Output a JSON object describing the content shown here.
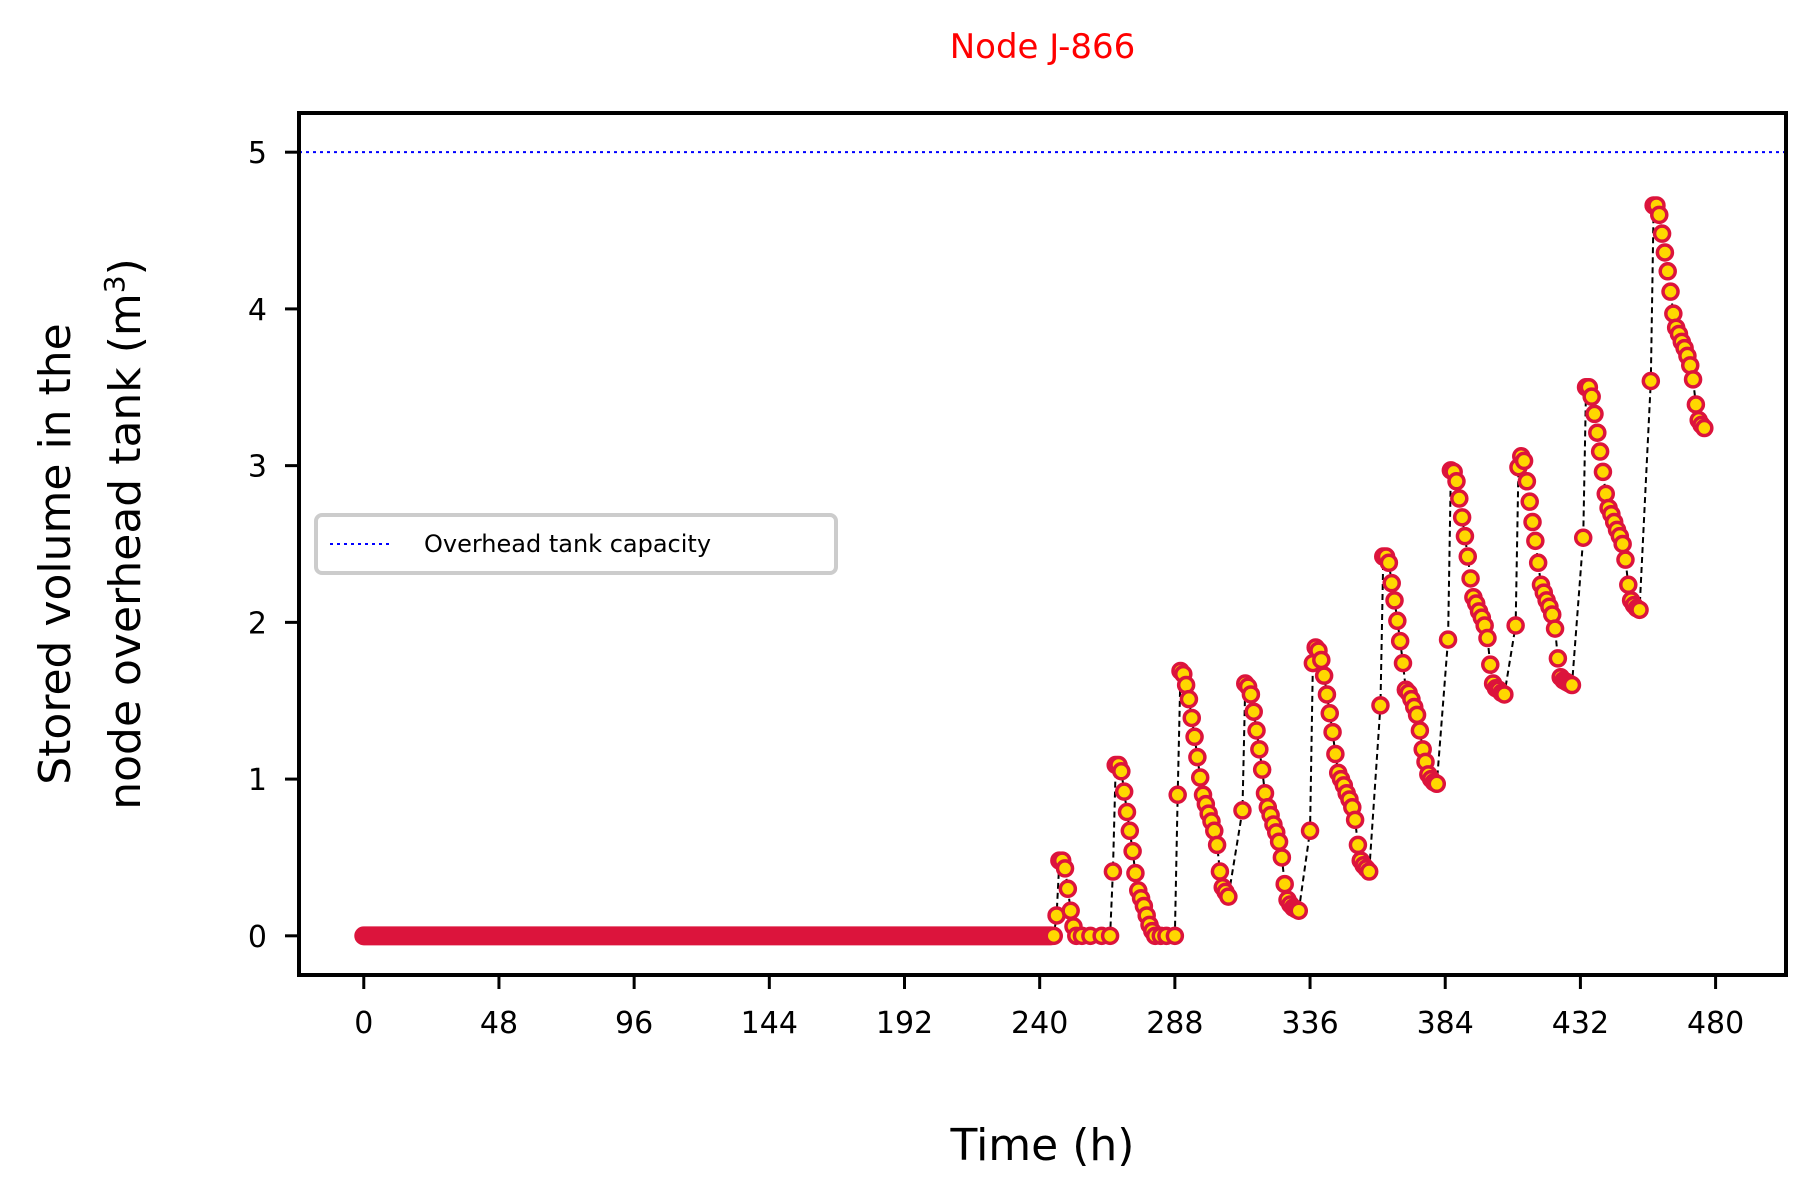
{
  "chart_data": {
    "type": "scatter",
    "title": "Node J-866",
    "xlabel": "Time (h)",
    "ylabel_line1": "Stored volume in the",
    "ylabel_line2_prefix": "node overhead tank (m",
    "ylabel_sup": "3",
    "ylabel_suffix": ")",
    "xlim": [
      -23,
      505
    ],
    "ylim": [
      -0.25,
      5.25
    ],
    "xticks": [
      0,
      48,
      96,
      144,
      192,
      240,
      288,
      336,
      384,
      432,
      480
    ],
    "yticks": [
      0,
      1,
      2,
      3,
      4,
      5
    ],
    "capacity": 5,
    "legend": {
      "label": "Overhead tank capacity",
      "location": "center-left"
    },
    "grid": false,
    "colors": {
      "title": "#ff0000",
      "marker_edge": "#dc143c",
      "marker_face": "#ffd700",
      "connector": "#000000",
      "capacity_line": "#0000ff"
    },
    "zero_segment": {
      "x_start": 0,
      "x_end": 244,
      "y": 0
    },
    "series": [
      {
        "values": [
          [
            245,
            0
          ],
          [
            246,
            0.13
          ],
          [
            247,
            0.48
          ],
          [
            248,
            0.48
          ],
          [
            249,
            0.43
          ],
          [
            250,
            0.3
          ],
          [
            251,
            0.16
          ],
          [
            252,
            0.06
          ],
          [
            253,
            0
          ],
          [
            255,
            0
          ],
          [
            258,
            0
          ],
          [
            262,
            0
          ],
          [
            265,
            0
          ],
          [
            266,
            0.41
          ],
          [
            267,
            1.09
          ],
          [
            268,
            1.09
          ],
          [
            269,
            1.05
          ],
          [
            270,
            0.92
          ],
          [
            271,
            0.79
          ],
          [
            272,
            0.67
          ],
          [
            273,
            0.54
          ],
          [
            274,
            0.4
          ],
          [
            275,
            0.29
          ],
          [
            276,
            0.24
          ],
          [
            277,
            0.19
          ],
          [
            278,
            0.13
          ],
          [
            279,
            0.07
          ],
          [
            280,
            0.03
          ],
          [
            281,
            0
          ],
          [
            283,
            0
          ],
          [
            285,
            0
          ],
          [
            288,
            0
          ],
          [
            289,
            0.9
          ],
          [
            290,
            1.69
          ],
          [
            291,
            1.67
          ],
          [
            292,
            1.6
          ],
          [
            293,
            1.51
          ],
          [
            294,
            1.39
          ],
          [
            295,
            1.27
          ],
          [
            296,
            1.14
          ],
          [
            297,
            1.01
          ],
          [
            298,
            0.9
          ],
          [
            299,
            0.84
          ],
          [
            300,
            0.78
          ],
          [
            301,
            0.73
          ],
          [
            302,
            0.67
          ],
          [
            303,
            0.58
          ],
          [
            304,
            0.41
          ],
          [
            305,
            0.31
          ],
          [
            306,
            0.28
          ],
          [
            307,
            0.25
          ],
          [
            312,
            0.8
          ],
          [
            313,
            1.61
          ],
          [
            314,
            1.59
          ],
          [
            315,
            1.54
          ],
          [
            316,
            1.43
          ],
          [
            317,
            1.31
          ],
          [
            318,
            1.19
          ],
          [
            319,
            1.06
          ],
          [
            320,
            0.91
          ],
          [
            321,
            0.82
          ],
          [
            322,
            0.77
          ],
          [
            323,
            0.71
          ],
          [
            324,
            0.66
          ],
          [
            325,
            0.6
          ],
          [
            326,
            0.5
          ],
          [
            327,
            0.33
          ],
          [
            328,
            0.23
          ],
          [
            329,
            0.2
          ],
          [
            330,
            0.18
          ],
          [
            331,
            0.17
          ],
          [
            332,
            0.16
          ],
          [
            336,
            0.67
          ],
          [
            337,
            1.74
          ],
          [
            338,
            1.84
          ],
          [
            339,
            1.82
          ],
          [
            340,
            1.76
          ],
          [
            341,
            1.66
          ],
          [
            342,
            1.54
          ],
          [
            343,
            1.42
          ],
          [
            344,
            1.3
          ],
          [
            345,
            1.16
          ],
          [
            346,
            1.04
          ],
          [
            347,
            1.0
          ],
          [
            348,
            0.96
          ],
          [
            349,
            0.91
          ],
          [
            350,
            0.87
          ],
          [
            351,
            0.82
          ],
          [
            352,
            0.74
          ],
          [
            353,
            0.58
          ],
          [
            354,
            0.48
          ],
          [
            355,
            0.45
          ],
          [
            356,
            0.43
          ],
          [
            357,
            0.41
          ],
          [
            361,
            1.47
          ],
          [
            362,
            2.42
          ],
          [
            363,
            2.42
          ],
          [
            364,
            2.38
          ],
          [
            365,
            2.25
          ],
          [
            366,
            2.14
          ],
          [
            367,
            2.01
          ],
          [
            368,
            1.88
          ],
          [
            369,
            1.74
          ],
          [
            370,
            1.57
          ],
          [
            371,
            1.55
          ],
          [
            372,
            1.51
          ],
          [
            373,
            1.46
          ],
          [
            374,
            1.41
          ],
          [
            375,
            1.31
          ],
          [
            376,
            1.19
          ],
          [
            377,
            1.11
          ],
          [
            378,
            1.03
          ],
          [
            379,
            1.0
          ],
          [
            380,
            0.98
          ],
          [
            381,
            0.97
          ],
          [
            385,
            1.89
          ],
          [
            386,
            2.97
          ],
          [
            387,
            2.96
          ],
          [
            388,
            2.9
          ],
          [
            389,
            2.79
          ],
          [
            390,
            2.67
          ],
          [
            391,
            2.55
          ],
          [
            392,
            2.42
          ],
          [
            393,
            2.28
          ],
          [
            394,
            2.16
          ],
          [
            395,
            2.12
          ],
          [
            396,
            2.07
          ],
          [
            397,
            2.03
          ],
          [
            398,
            1.98
          ],
          [
            399,
            1.9
          ],
          [
            400,
            1.73
          ],
          [
            401,
            1.61
          ],
          [
            402,
            1.58
          ],
          [
            403,
            1.57
          ],
          [
            404,
            1.55
          ],
          [
            405,
            1.54
          ],
          [
            409,
            1.98
          ],
          [
            410,
            2.99
          ],
          [
            411,
            3.06
          ],
          [
            412,
            3.03
          ],
          [
            413,
            2.9
          ],
          [
            414,
            2.77
          ],
          [
            415,
            2.64
          ],
          [
            416,
            2.52
          ],
          [
            417,
            2.38
          ],
          [
            418,
            2.24
          ],
          [
            419,
            2.19
          ],
          [
            420,
            2.14
          ],
          [
            421,
            2.1
          ],
          [
            422,
            2.05
          ],
          [
            423,
            1.96
          ],
          [
            424,
            1.77
          ],
          [
            425,
            1.65
          ],
          [
            426,
            1.63
          ],
          [
            427,
            1.62
          ],
          [
            428,
            1.61
          ],
          [
            429,
            1.6
          ],
          [
            433,
            2.54
          ],
          [
            434,
            3.5
          ],
          [
            435,
            3.5
          ],
          [
            436,
            3.44
          ],
          [
            437,
            3.33
          ],
          [
            438,
            3.21
          ],
          [
            439,
            3.09
          ],
          [
            440,
            2.96
          ],
          [
            441,
            2.82
          ],
          [
            442,
            2.73
          ],
          [
            443,
            2.69
          ],
          [
            444,
            2.64
          ],
          [
            445,
            2.59
          ],
          [
            446,
            2.55
          ],
          [
            447,
            2.5
          ],
          [
            448,
            2.4
          ],
          [
            449,
            2.24
          ],
          [
            450,
            2.14
          ],
          [
            451,
            2.11
          ],
          [
            452,
            2.09
          ],
          [
            453,
            2.08
          ],
          [
            457,
            3.54
          ],
          [
            458,
            4.66
          ],
          [
            459,
            4.66
          ],
          [
            460,
            4.6
          ],
          [
            461,
            4.48
          ],
          [
            462,
            4.36
          ],
          [
            463,
            4.24
          ],
          [
            464,
            4.11
          ],
          [
            465,
            3.97
          ],
          [
            466,
            3.88
          ],
          [
            467,
            3.84
          ],
          [
            468,
            3.79
          ],
          [
            469,
            3.75
          ],
          [
            470,
            3.7
          ],
          [
            471,
            3.64
          ],
          [
            472,
            3.55
          ],
          [
            473,
            3.39
          ],
          [
            474,
            3.29
          ],
          [
            475,
            3.26
          ],
          [
            476,
            3.24
          ]
        ]
      }
    ]
  }
}
